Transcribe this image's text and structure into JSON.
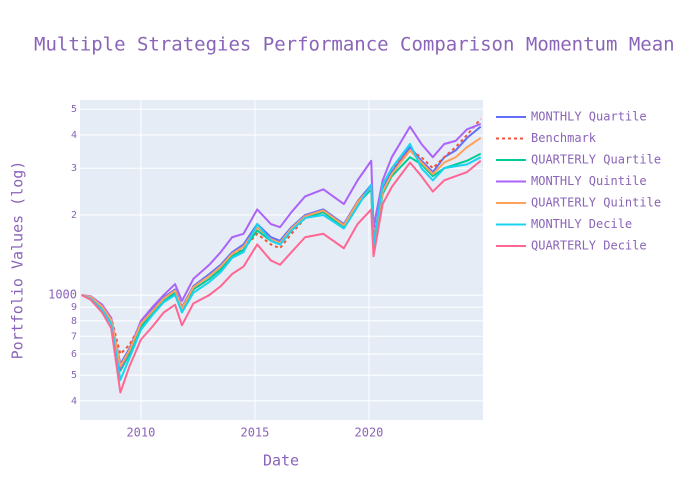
{
  "chart_data": {
    "type": "line",
    "title": "Multiple Strategies Performance Comparison Momentum Mean",
    "x_label": "Date",
    "y_label": "Portfolio Values (log)",
    "log_y": true,
    "grid": true,
    "legend_position": "right",
    "xlim": [
      2007.33,
      2025.0
    ],
    "xticks": [
      2010,
      2015,
      2020
    ],
    "ylim": [
      339,
      5415
    ],
    "yticks": [
      {
        "value": 400,
        "label": "4"
      },
      {
        "value": 500,
        "label": "5"
      },
      {
        "value": 600,
        "label": "6"
      },
      {
        "value": 700,
        "label": "7"
      },
      {
        "value": 800,
        "label": "8"
      },
      {
        "value": 900,
        "label": "9"
      },
      1000,
      {
        "value": 2000,
        "label": "2"
      },
      {
        "value": 3000,
        "label": "3"
      },
      {
        "value": 4000,
        "label": "4"
      },
      {
        "value": 5000,
        "label": "5"
      }
    ],
    "x": [
      2007.4,
      2007.8,
      2008.3,
      2008.7,
      2009.1,
      2009.5,
      2010,
      2010.5,
      2011,
      2011.5,
      2011.8,
      2012.3,
      2013,
      2013.5,
      2014,
      2014.5,
      2015.1,
      2015.7,
      2016.1,
      2016.6,
      2017.2,
      2018,
      2018.9,
      2019.5,
      2020.1,
      2020.2,
      2020.6,
      2021,
      2021.8,
      2022.3,
      2022.8,
      2023.3,
      2023.8,
      2024.3,
      2024.9
    ],
    "series": [
      {
        "name": "MONTHLY Quartile",
        "color": "#636efa",
        "dash": "solid",
        "values": [
          1000,
          980,
          910,
          810,
          550,
          630,
          790,
          880,
          980,
          1050,
          900,
          1080,
          1200,
          1300,
          1450,
          1550,
          1850,
          1650,
          1600,
          1800,
          2000,
          2100,
          1850,
          2250,
          2600,
          1600,
          2500,
          2900,
          3600,
          3200,
          2900,
          3300,
          3500,
          3900,
          4300
        ]
      },
      {
        "name": "Benchmark",
        "color": "#ef553b",
        "dash": "dot",
        "values": [
          1000,
          980,
          900,
          820,
          600,
          650,
          780,
          850,
          950,
          1000,
          900,
          1050,
          1150,
          1250,
          1400,
          1500,
          1700,
          1550,
          1500,
          1700,
          1950,
          2050,
          1800,
          2250,
          2550,
          1650,
          2600,
          3000,
          3500,
          3300,
          3000,
          3300,
          3600,
          4000,
          4600
        ]
      },
      {
        "name": "QUARTERLY Quartile",
        "color": "#00cc96",
        "dash": "solid",
        "values": [
          1000,
          975,
          900,
          800,
          520,
          600,
          760,
          850,
          950,
          1020,
          880,
          1050,
          1150,
          1250,
          1400,
          1480,
          1750,
          1600,
          1550,
          1750,
          1950,
          2050,
          1800,
          2200,
          2500,
          1500,
          2400,
          2800,
          3300,
          3100,
          2800,
          3000,
          3100,
          3200,
          3400
        ]
      },
      {
        "name": "MONTHLY Quintile",
        "color": "#ab63fa",
        "dash": "solid",
        "values": [
          1000,
          990,
          920,
          820,
          530,
          620,
          800,
          900,
          1000,
          1100,
          950,
          1150,
          1300,
          1450,
          1650,
          1700,
          2100,
          1850,
          1800,
          2050,
          2350,
          2500,
          2200,
          2700,
          3200,
          1800,
          2700,
          3300,
          4300,
          3700,
          3300,
          3700,
          3800,
          4200,
          4400
        ]
      },
      {
        "name": "QUARTERLY Quintile",
        "color": "#ffa15a",
        "dash": "solid",
        "values": [
          1000,
          985,
          905,
          805,
          540,
          620,
          780,
          870,
          970,
          1040,
          890,
          1070,
          1180,
          1280,
          1430,
          1520,
          1800,
          1620,
          1570,
          1780,
          1980,
          2080,
          1830,
          2230,
          2550,
          1550,
          2450,
          2850,
          3500,
          3150,
          2850,
          3150,
          3300,
          3600,
          3900
        ]
      },
      {
        "name": "MONTHLY Decile",
        "color": "#19d3f3",
        "dash": "solid",
        "values": [
          1000,
          970,
          880,
          780,
          480,
          580,
          740,
          840,
          940,
          1000,
          860,
          1020,
          1120,
          1220,
          1380,
          1450,
          1850,
          1600,
          1550,
          1750,
          1950,
          2000,
          1780,
          2150,
          2600,
          1550,
          2600,
          3000,
          3700,
          3000,
          2700,
          3000,
          3050,
          3100,
          3300
        ]
      },
      {
        "name": "QUARTERLY Decile",
        "color": "#ff6692",
        "dash": "solid",
        "values": [
          1000,
          960,
          860,
          750,
          430,
          540,
          680,
          760,
          860,
          920,
          770,
          930,
          1000,
          1080,
          1200,
          1280,
          1550,
          1350,
          1300,
          1450,
          1650,
          1700,
          1500,
          1850,
          2100,
          1400,
          2200,
          2550,
          3150,
          2800,
          2450,
          2700,
          2800,
          2900,
          3200
        ]
      }
    ]
  }
}
